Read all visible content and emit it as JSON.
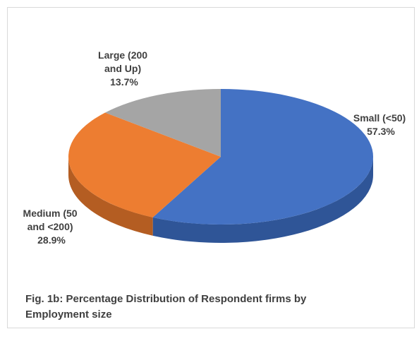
{
  "chart_data": {
    "type": "pie",
    "style": "3d",
    "slices": [
      {
        "label_lines": [
          "Small (<50)",
          "57.3%"
        ],
        "category": "Small (<50)",
        "value": 57.3,
        "color": "#4472C4",
        "side": "#2F5597"
      },
      {
        "label_lines": [
          "Medium (50",
          "and <200)",
          "28.9%"
        ],
        "category": "Medium (50 and <200)",
        "value": 28.9,
        "color": "#ED7D31",
        "side": "#B45D22"
      },
      {
        "label_lines": [
          "Large (200",
          "and Up)",
          "13.7%"
        ],
        "category": "Large (200 and Up)",
        "value": 13.7,
        "color": "#A5A5A5",
        "side": "#7F7F7F"
      }
    ]
  },
  "caption": {
    "line1": "Fig. 1b: Percentage Distribution of Respondent firms by",
    "line2": "Employment size"
  }
}
